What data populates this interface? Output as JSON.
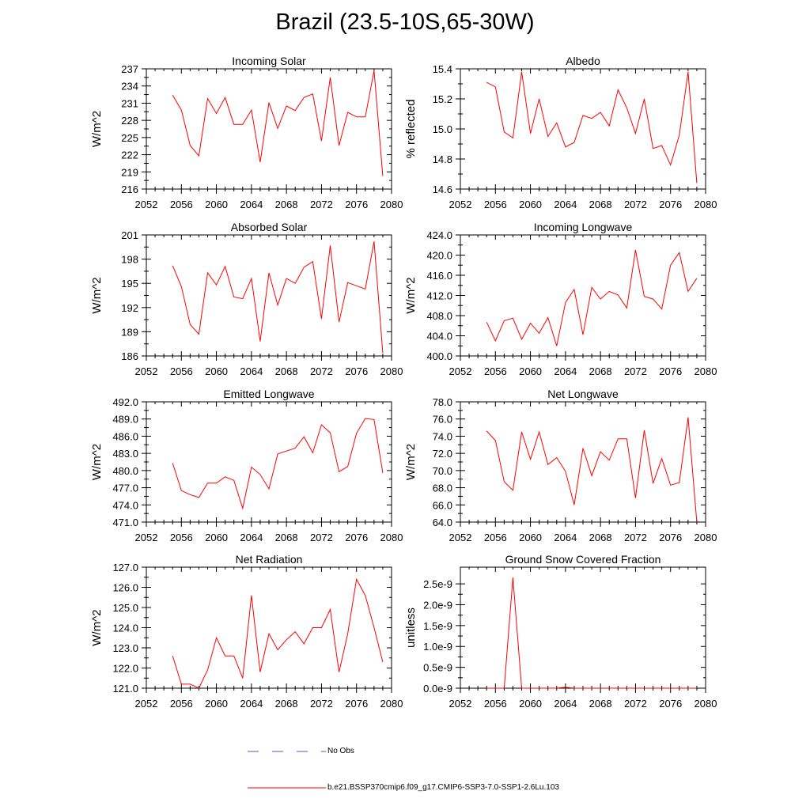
{
  "title": "Brazil (23.5-10S,65-30W)",
  "colors": {
    "series": "#ff0000",
    "no_obs": "#3c5fe0",
    "axis": "#000000"
  },
  "legend": {
    "no_obs_label": "No Obs",
    "series_label": "b.e21.BSSP370cmip6.f09_g17.CMIP6-SSP3-7.0-SSP1-2.6Lu.103"
  },
  "chart_data": [
    {
      "type": "line",
      "title": "Incoming Solar",
      "ylabel": "W/m^2",
      "xlabel": "",
      "xlim": [
        2052,
        2080
      ],
      "ylim": [
        216,
        237
      ],
      "xticks": [
        2052,
        2056,
        2060,
        2064,
        2068,
        2072,
        2076,
        2080
      ],
      "yticks": [
        "216",
        "219",
        "222",
        "225",
        "228",
        "231",
        "234",
        "237"
      ],
      "ytick_values": [
        216,
        219,
        222,
        225,
        228,
        231,
        234,
        237
      ],
      "x": [
        2055,
        2056,
        2057,
        2058,
        2059,
        2060,
        2061,
        2062,
        2063,
        2064,
        2065,
        2066,
        2067,
        2068,
        2069,
        2070,
        2071,
        2072,
        2073,
        2074,
        2075,
        2076,
        2077,
        2078,
        2079
      ],
      "values": [
        232.4,
        229.8,
        223.6,
        221.8,
        231.8,
        229.2,
        232.0,
        227.3,
        227.3,
        229.8,
        220.7,
        231.1,
        226.6,
        230.5,
        229.7,
        232.0,
        232.6,
        224.4,
        235.5,
        223.6,
        229.4,
        228.6,
        228.6,
        236.7,
        218.3
      ]
    },
    {
      "type": "line",
      "title": "Albedo",
      "ylabel": "% reflected",
      "xlabel": "",
      "xlim": [
        2052,
        2080
      ],
      "ylim": [
        14.6,
        15.4
      ],
      "xticks": [
        2052,
        2056,
        2060,
        2064,
        2068,
        2072,
        2076,
        2080
      ],
      "yticks": [
        "14.6",
        "14.8",
        "15.0",
        "15.2",
        "15.4"
      ],
      "ytick_values": [
        14.6,
        14.8,
        15.0,
        15.2,
        15.4
      ],
      "x": [
        2055,
        2056,
        2057,
        2058,
        2059,
        2060,
        2061,
        2062,
        2063,
        2064,
        2065,
        2066,
        2067,
        2068,
        2069,
        2070,
        2071,
        2072,
        2073,
        2074,
        2075,
        2076,
        2077,
        2078,
        2079
      ],
      "values": [
        15.31,
        15.28,
        14.98,
        14.94,
        15.38,
        14.97,
        15.2,
        14.95,
        15.04,
        14.88,
        14.91,
        15.09,
        15.07,
        15.11,
        15.02,
        15.26,
        15.14,
        14.97,
        15.2,
        14.87,
        14.89,
        14.76,
        14.96,
        15.38,
        14.64
      ]
    },
    {
      "type": "line",
      "title": "Absorbed Solar",
      "ylabel": "W/m^2",
      "xlabel": "",
      "xlim": [
        2052,
        2080
      ],
      "ylim": [
        186,
        201
      ],
      "xticks": [
        2052,
        2056,
        2060,
        2064,
        2068,
        2072,
        2076,
        2080
      ],
      "yticks": [
        "186",
        "189",
        "192",
        "195",
        "198",
        "201"
      ],
      "ytick_values": [
        186,
        189,
        192,
        195,
        198,
        201
      ],
      "x": [
        2055,
        2056,
        2057,
        2058,
        2059,
        2060,
        2061,
        2062,
        2063,
        2064,
        2065,
        2066,
        2067,
        2068,
        2069,
        2070,
        2071,
        2072,
        2073,
        2074,
        2075,
        2076,
        2077,
        2078,
        2079
      ],
      "values": [
        197.2,
        194.6,
        189.9,
        188.7,
        196.3,
        194.8,
        197.1,
        193.3,
        193.1,
        195.6,
        187.8,
        196.3,
        192.3,
        195.6,
        195.0,
        197.0,
        197.7,
        190.6,
        199.7,
        190.2,
        195.1,
        194.7,
        194.3,
        200.2,
        186.4
      ]
    },
    {
      "type": "line",
      "title": "Incoming Longwave",
      "ylabel": "W/m^2",
      "xlabel": "",
      "xlim": [
        2052,
        2080
      ],
      "ylim": [
        400,
        424
      ],
      "xticks": [
        2052,
        2056,
        2060,
        2064,
        2068,
        2072,
        2076,
        2080
      ],
      "yticks": [
        "400.0",
        "404.0",
        "408.0",
        "412.0",
        "416.0",
        "420.0",
        "424.0"
      ],
      "ytick_values": [
        400,
        404,
        408,
        412,
        416,
        420,
        424
      ],
      "x": [
        2055,
        2056,
        2057,
        2058,
        2059,
        2060,
        2061,
        2062,
        2063,
        2064,
        2065,
        2066,
        2067,
        2068,
        2069,
        2070,
        2071,
        2072,
        2073,
        2074,
        2075,
        2076,
        2077,
        2078,
        2079
      ],
      "values": [
        406.7,
        403.0,
        407.0,
        407.5,
        403.3,
        406.5,
        404.5,
        407.6,
        402.0,
        410.6,
        413.2,
        404.2,
        413.6,
        411.3,
        412.8,
        412.1,
        409.5,
        421.0,
        411.8,
        411.3,
        409.3,
        418.0,
        420.5,
        412.8,
        415.4
      ]
    },
    {
      "type": "line",
      "title": "Emitted Longwave",
      "ylabel": "W/m^2",
      "xlabel": "",
      "xlim": [
        2052,
        2080
      ],
      "ylim": [
        471,
        492
      ],
      "xticks": [
        2052,
        2056,
        2060,
        2064,
        2068,
        2072,
        2076,
        2080
      ],
      "yticks": [
        "471.0",
        "474.0",
        "477.0",
        "480.0",
        "483.0",
        "486.0",
        "489.0",
        "492.0"
      ],
      "ytick_values": [
        471,
        474,
        477,
        480,
        483,
        486,
        489,
        492
      ],
      "x": [
        2055,
        2056,
        2057,
        2058,
        2059,
        2060,
        2061,
        2062,
        2063,
        2064,
        2065,
        2066,
        2067,
        2068,
        2069,
        2070,
        2071,
        2072,
        2073,
        2074,
        2075,
        2076,
        2077,
        2078,
        2079
      ],
      "values": [
        481.3,
        476.5,
        475.8,
        475.3,
        477.8,
        477.8,
        478.9,
        478.3,
        473.4,
        480.6,
        479.3,
        476.8,
        482.9,
        483.4,
        483.9,
        485.9,
        483.1,
        488.0,
        486.6,
        479.8,
        480.7,
        486.5,
        489.1,
        488.9,
        479.6
      ]
    },
    {
      "type": "line",
      "title": "Net Longwave",
      "ylabel": "W/m^2",
      "xlabel": "",
      "xlim": [
        2052,
        2080
      ],
      "ylim": [
        64,
        78
      ],
      "xticks": [
        2052,
        2056,
        2060,
        2064,
        2068,
        2072,
        2076,
        2080
      ],
      "yticks": [
        "64.0",
        "66.0",
        "68.0",
        "70.0",
        "72.0",
        "74.0",
        "76.0",
        "78.0"
      ],
      "ytick_values": [
        64,
        66,
        68,
        70,
        72,
        74,
        76,
        78
      ],
      "x": [
        2055,
        2056,
        2057,
        2058,
        2059,
        2060,
        2061,
        2062,
        2063,
        2064,
        2065,
        2066,
        2067,
        2068,
        2069,
        2070,
        2071,
        2072,
        2073,
        2074,
        2075,
        2076,
        2077,
        2078,
        2079
      ],
      "values": [
        74.6,
        73.5,
        68.7,
        67.7,
        74.5,
        71.3,
        74.5,
        70.7,
        71.5,
        69.9,
        66.0,
        72.6,
        69.4,
        72.2,
        71.2,
        73.7,
        73.7,
        66.8,
        74.7,
        68.5,
        71.4,
        68.3,
        68.6,
        76.2,
        63.9
      ]
    },
    {
      "type": "line",
      "title": "Net Radiation",
      "ylabel": "W/m^2",
      "xlabel": "",
      "xlim": [
        2052,
        2080
      ],
      "ylim": [
        121,
        127
      ],
      "xticks": [
        2052,
        2056,
        2060,
        2064,
        2068,
        2072,
        2076,
        2080
      ],
      "yticks": [
        "121.0",
        "122.0",
        "123.0",
        "124.0",
        "125.0",
        "126.0",
        "127.0"
      ],
      "ytick_values": [
        121,
        122,
        123,
        124,
        125,
        126,
        127
      ],
      "x": [
        2055,
        2056,
        2057,
        2058,
        2059,
        2060,
        2061,
        2062,
        2063,
        2064,
        2065,
        2066,
        2067,
        2068,
        2069,
        2070,
        2071,
        2072,
        2073,
        2074,
        2075,
        2076,
        2077,
        2078,
        2079
      ],
      "values": [
        122.6,
        121.2,
        121.2,
        121.0,
        121.9,
        123.5,
        122.6,
        122.6,
        121.5,
        125.6,
        121.8,
        123.7,
        122.9,
        123.4,
        123.8,
        123.2,
        124.0,
        124.0,
        124.9,
        121.8,
        123.7,
        126.4,
        125.6,
        124.0,
        122.3
      ]
    },
    {
      "type": "line",
      "title": "Ground Snow Covered Fraction",
      "ylabel": "unitless",
      "xlabel": "",
      "xlim": [
        2052,
        2080
      ],
      "ylim": [
        0,
        2.9e-09
      ],
      "xticks": [
        2052,
        2056,
        2060,
        2064,
        2068,
        2072,
        2076,
        2080
      ],
      "yticks": [
        "0.0e-9",
        "0.5e-9",
        "1.0e-9",
        "1.5e-9",
        "2.0e-9",
        "2.5e-9"
      ],
      "ytick_values": [
        0,
        5e-10,
        1e-09,
        1.5e-09,
        2e-09,
        2.5e-09
      ],
      "x": [
        2055,
        2056,
        2057,
        2058,
        2059,
        2060,
        2061,
        2062,
        2063,
        2064,
        2065,
        2066,
        2067,
        2068,
        2069,
        2070,
        2071,
        2072,
        2073,
        2074,
        2075,
        2076,
        2077,
        2078,
        2079
      ],
      "values": [
        0,
        0,
        0,
        2.65e-09,
        0,
        0,
        0,
        0,
        0,
        2.5e-11,
        0,
        0,
        0,
        0,
        0,
        0,
        0,
        0,
        0,
        0,
        0,
        0,
        0,
        0,
        0
      ]
    }
  ]
}
